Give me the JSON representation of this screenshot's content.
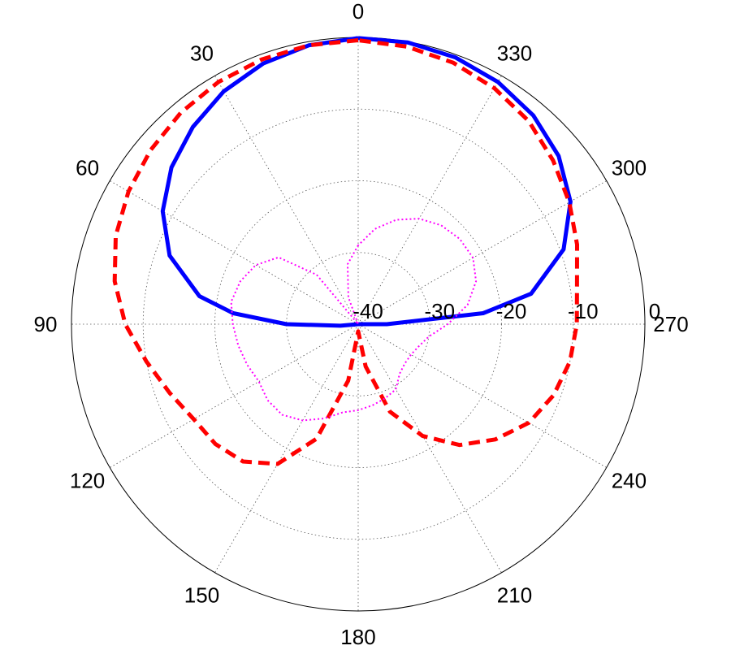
{
  "chart_data": {
    "type": "polar-line",
    "title": "",
    "angle_unit": "deg",
    "angle_zero": "top",
    "angle_direction": "counterclockwise",
    "angle_ticks": [
      0,
      30,
      60,
      90,
      120,
      150,
      180,
      210,
      240,
      270,
      300,
      330
    ],
    "angle_tick_labels": [
      "0",
      "30",
      "60",
      "90",
      "120",
      "150",
      "180",
      "210",
      "240",
      "270",
      "300",
      "330"
    ],
    "radial_range": [
      -40,
      0
    ],
    "radial_ticks": [
      -40,
      -30,
      -20,
      -10,
      0
    ],
    "radial_tick_labels": [
      "-40",
      "-30",
      "-20",
      "-10",
      "0"
    ],
    "radial_label_angle": 270,
    "grid": true,
    "grid_style": "dotted",
    "series": [
      {
        "color": "#0000ff",
        "style": "solid",
        "theta": [
          0,
          10,
          20,
          30,
          40,
          50,
          60,
          70,
          80,
          85,
          90,
          95,
          100,
          110,
          120,
          130,
          140,
          150,
          160,
          170,
          180,
          190,
          200,
          210,
          220,
          230,
          240,
          250,
          260,
          265,
          270,
          275,
          280,
          290,
          300,
          310,
          320,
          330,
          340,
          350,
          360
        ],
        "r": [
          -0.1,
          -0.5,
          -1.3,
          -2.5,
          -4.1,
          -6.0,
          -8.5,
          -12.0,
          -17.5,
          -22.5,
          -30.0,
          -37.5,
          -40,
          -40,
          -40,
          -40,
          -40,
          -40,
          -40,
          -40,
          -40,
          -40,
          -40,
          -40,
          -40,
          -40,
          -40,
          -40,
          -40,
          -40,
          -36.0,
          -22.5,
          -15.5,
          -9.5,
          -5.8,
          -3.5,
          -2.0,
          -1.0,
          -0.4,
          -0.1,
          -0.1
        ]
      },
      {
        "color": "#ff0000",
        "style": "dashed",
        "theta": [
          0,
          10,
          20,
          30,
          40,
          50,
          60,
          70,
          80,
          90,
          100,
          110,
          120,
          130,
          140,
          150,
          160,
          170,
          180,
          190,
          200,
          210,
          220,
          230,
          240,
          250,
          260,
          270,
          280,
          290,
          300,
          310,
          320,
          330,
          340,
          350,
          360
        ],
        "r": [
          -0.4,
          -0.5,
          -0.7,
          -1.0,
          -1.5,
          -2.2,
          -3.0,
          -4.0,
          -5.5,
          -7.5,
          -10.0,
          -12.0,
          -13.5,
          -14.0,
          -15.0,
          -17.5,
          -23.0,
          -32.0,
          -39.0,
          -34.0,
          -27.0,
          -22.0,
          -18.0,
          -15.0,
          -12.5,
          -11.0,
          -10.0,
          -9.5,
          -9.0,
          -7.5,
          -6.0,
          -4.5,
          -3.0,
          -2.0,
          -1.2,
          -0.7,
          -0.4
        ]
      },
      {
        "color": "#ff00ff",
        "style": "dotted",
        "theta": [
          0,
          10,
          20,
          30,
          40,
          50,
          60,
          70,
          80,
          90,
          100,
          110,
          120,
          130,
          140,
          150,
          160,
          170,
          180,
          190,
          200,
          210,
          220,
          230,
          240,
          250,
          260,
          270,
          280,
          290,
          300,
          310,
          320,
          330,
          340,
          350,
          360
        ],
        "r": [
          -29.0,
          -31.5,
          -36.0,
          -40,
          -31.0,
          -25.5,
          -23.5,
          -22.5,
          -22.0,
          -22.5,
          -23.0,
          -23.5,
          -24.0,
          -23.5,
          -23.5,
          -24.5,
          -26.0,
          -27.5,
          -28.0,
          -28.5,
          -29.0,
          -29.5,
          -31.0,
          -31.5,
          -31.5,
          -31.0,
          -30.0,
          -27.5,
          -24.5,
          -22.5,
          -21.5,
          -21.5,
          -22.0,
          -23.0,
          -24.5,
          -26.5,
          -29.0
        ]
      }
    ]
  }
}
